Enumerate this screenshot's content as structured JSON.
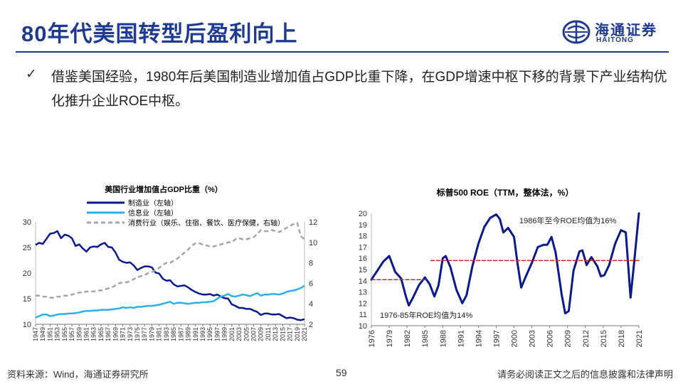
{
  "header": {
    "title": "80年代美国转型后盈利向上",
    "logo": {
      "cn": "海通证券",
      "en": "HAITONG",
      "icon": "haitong-logo-icon"
    }
  },
  "bullet": {
    "icon": "checkmark-icon",
    "text": "借鉴美国经验，1980年后美国制造业增加值占GDP比重下降，在GDP增速中枢下移的背景下产业结构优化推升企业ROE中枢。"
  },
  "footer": {
    "source": "资料来源：Wind，海通证券研究所",
    "page": "59",
    "disclaimer": "请务必阅读正文之后的信息披露和法律声明"
  },
  "colors": {
    "brand": "#1f3a93",
    "navy": "#0a1a8c",
    "cyan": "#2bb1e8",
    "gray": "#a5a5a5",
    "red": "#d62020"
  },
  "chart_data": [
    {
      "type": "line",
      "title": "美国行业增加值占GDP比重（%）",
      "x": [
        1947,
        1948,
        1949,
        1950,
        1951,
        1952,
        1953,
        1954,
        1955,
        1956,
        1957,
        1958,
        1959,
        1960,
        1961,
        1962,
        1963,
        1964,
        1965,
        1966,
        1967,
        1968,
        1969,
        1970,
        1971,
        1972,
        1973,
        1974,
        1975,
        1976,
        1977,
        1978,
        1979,
        1980,
        1981,
        1982,
        1983,
        1984,
        1985,
        1986,
        1987,
        1988,
        1989,
        1990,
        1991,
        1992,
        1993,
        1994,
        1995,
        1996,
        1997,
        1998,
        1999,
        2000,
        2001,
        2002,
        2003,
        2004,
        2005,
        2006,
        2007,
        2008,
        2009,
        2010,
        2011,
        2012,
        2013,
        2014,
        2015,
        2016,
        2017,
        2018,
        2019,
        2020,
        2021
      ],
      "x_tick_labels": [
        "1947",
        "1949",
        "1951",
        "1953",
        "1955",
        "1957",
        "1959",
        "1961",
        "1963",
        "1965",
        "1967",
        "1969",
        "1971",
        "1973",
        "1975",
        "1977",
        "1979",
        "1981",
        "1983",
        "1985",
        "1987",
        "1989",
        "1991",
        "1993",
        "1995",
        "1997",
        "1999",
        "2001",
        "2003",
        "2005",
        "2007",
        "2009",
        "2011",
        "2013",
        "2015",
        "2017",
        "2019",
        "2021"
      ],
      "y_left_ticks": [
        "10",
        "15",
        "20",
        "25",
        "30"
      ],
      "y_right_ticks": [
        "2",
        "4",
        "6",
        "8",
        "10",
        "12"
      ],
      "ylim_left": [
        10,
        30
      ],
      "ylim_right": [
        2,
        12
      ],
      "legend": [
        "制造业（左轴）",
        "信息业（左轴）",
        "消费行业（娱乐、住宿、餐饮、医疗保健，右轴）"
      ],
      "series": [
        {
          "name": "制造业（左轴）",
          "axis": "left",
          "color": "#0a1a8c",
          "style": "solid",
          "values": [
            25.5,
            25.9,
            25.7,
            26.7,
            27.7,
            27.8,
            28.2,
            26.8,
            27.5,
            27.3,
            26.8,
            25.3,
            25.6,
            24.8,
            24.2,
            25.0,
            25.2,
            25.1,
            25.6,
            25.9,
            25.1,
            25.0,
            24.0,
            22.6,
            22.2,
            22.0,
            22.1,
            21.5,
            20.6,
            21.0,
            21.3,
            21.3,
            21.1,
            20.1,
            19.9,
            18.9,
            18.5,
            18.6,
            17.8,
            17.4,
            17.5,
            17.6,
            17.2,
            16.7,
            16.3,
            16.0,
            15.8,
            15.8,
            15.9,
            15.6,
            15.8,
            15.4,
            15.1,
            15.0,
            13.9,
            13.6,
            13.2,
            13.2,
            13.0,
            13.0,
            12.7,
            12.4,
            11.8,
            12.1,
            12.1,
            11.9,
            11.9,
            12.0,
            11.6,
            11.2,
            11.3,
            11.2,
            10.9,
            10.8,
            11.0
          ]
        },
        {
          "name": "信息业（左轴）",
          "axis": "left",
          "color": "#2bb1e8",
          "style": "solid",
          "values": [
            11.3,
            11.6,
            11.9,
            11.9,
            11.6,
            11.7,
            11.9,
            12.0,
            12.0,
            12.1,
            12.1,
            12.2,
            12.3,
            12.5,
            12.6,
            12.6,
            12.7,
            12.7,
            12.8,
            12.8,
            12.8,
            12.9,
            13.0,
            13.1,
            13.3,
            13.2,
            13.3,
            13.2,
            13.4,
            13.4,
            13.5,
            13.6,
            13.6,
            13.7,
            13.8,
            14.0,
            14.2,
            14.4,
            14.0,
            14.2,
            14.2,
            14.1,
            14.0,
            14.1,
            14.2,
            14.2,
            14.3,
            14.3,
            14.4,
            14.5,
            15.0,
            15.4,
            15.6,
            15.9,
            15.5,
            15.4,
            15.6,
            15.8,
            15.7,
            15.5,
            15.8,
            16.1,
            15.6,
            15.8,
            15.8,
            15.9,
            15.9,
            15.8,
            16.0,
            16.3,
            16.5,
            16.6,
            16.8,
            17.1,
            17.5
          ]
        },
        {
          "name": "消费行业（娱乐、住宿、餐饮、医疗保健，右轴）",
          "axis": "right",
          "color": "#a5a5a5",
          "style": "dashed",
          "values": [
            4.8,
            4.8,
            4.7,
            4.7,
            4.6,
            4.6,
            4.7,
            4.7,
            4.8,
            4.8,
            4.9,
            5.0,
            5.1,
            5.1,
            5.2,
            5.2,
            5.2,
            5.3,
            5.3,
            5.4,
            5.5,
            5.6,
            5.8,
            6.0,
            6.1,
            6.1,
            6.2,
            6.4,
            6.6,
            6.7,
            6.8,
            7.0,
            7.1,
            7.3,
            7.5,
            7.8,
            8.0,
            8.0,
            8.2,
            8.4,
            8.7,
            9.0,
            9.3,
            9.7,
            9.9,
            9.9,
            9.8,
            9.7,
            9.6,
            9.6,
            9.7,
            9.8,
            9.9,
            10.0,
            10.0,
            10.3,
            10.4,
            10.3,
            10.3,
            10.4,
            10.5,
            10.8,
            11.2,
            11.1,
            11.1,
            11.2,
            11.1,
            11.0,
            11.2,
            11.4,
            11.6,
            11.8,
            11.9,
            10.6,
            10.3
          ]
        }
      ]
    },
    {
      "type": "line",
      "title": "标普500 ROE（TTM，整体法，%）",
      "x_tick_labels": [
        "1976",
        "1979",
        "1982",
        "1985",
        "1988",
        "1991",
        "1994",
        "1997",
        "2000",
        "2003",
        "2006",
        "2009",
        "2012",
        "2015",
        "2018",
        "2021"
      ],
      "y_ticks": [
        "10",
        "11",
        "12",
        "13",
        "14",
        "15",
        "16",
        "17",
        "18",
        "19",
        "20"
      ],
      "ylim": [
        10,
        20
      ],
      "series": [
        {
          "name": "标普500 ROE",
          "color": "#0a1a8c",
          "style": "solid",
          "points": [
            [
              1976,
              14.1
            ],
            [
              1977,
              14.9
            ],
            [
              1978,
              15.7
            ],
            [
              1979,
              16.2
            ],
            [
              1980,
              14.8
            ],
            [
              1981,
              14.2
            ],
            [
              1981.8,
              12.6
            ],
            [
              1982.3,
              11.8
            ],
            [
              1983,
              12.5
            ],
            [
              1984,
              13.6
            ],
            [
              1985,
              14.3
            ],
            [
              1985.8,
              13.7
            ],
            [
              1986.6,
              12.6
            ],
            [
              1987.3,
              13.6
            ],
            [
              1988,
              16.0
            ],
            [
              1988.5,
              16.2
            ],
            [
              1989.3,
              15.2
            ],
            [
              1990.3,
              13.2
            ],
            [
              1991.3,
              12.0
            ],
            [
              1992,
              12.7
            ],
            [
              1993,
              15.3
            ],
            [
              1994,
              17.3
            ],
            [
              1995,
              18.8
            ],
            [
              1996,
              19.6
            ],
            [
              1997,
              19.9
            ],
            [
              1997.6,
              19.5
            ],
            [
              1998.2,
              18.3
            ],
            [
              1999,
              18.7
            ],
            [
              2000,
              17.9
            ],
            [
              2000.6,
              15.5
            ],
            [
              2001.2,
              13.4
            ],
            [
              2002,
              14.4
            ],
            [
              2003,
              15.6
            ],
            [
              2004,
              17.0
            ],
            [
              2005,
              17.2
            ],
            [
              2005.6,
              17.2
            ],
            [
              2006.3,
              17.9
            ],
            [
              2007,
              16.5
            ],
            [
              2008,
              12.8
            ],
            [
              2008.6,
              11.1
            ],
            [
              2009.2,
              11.3
            ],
            [
              2010,
              14.9
            ],
            [
              2011,
              16.6
            ],
            [
              2011.5,
              16.7
            ],
            [
              2012.2,
              15.4
            ],
            [
              2013,
              16.1
            ],
            [
              2014,
              15.3
            ],
            [
              2014.6,
              14.4
            ],
            [
              2015.2,
              14.5
            ],
            [
              2016,
              15.4
            ],
            [
              2017,
              17.3
            ],
            [
              2018,
              18.5
            ],
            [
              2018.8,
              18.3
            ],
            [
              2019.6,
              12.5
            ],
            [
              2020.2,
              15.6
            ],
            [
              2021,
              20.0
            ]
          ]
        },
        {
          "name": "1976-85年ROE均值为14%",
          "color": "#d62020",
          "style": "dashed",
          "points": [
            [
              1976,
              14.1
            ],
            [
              1985.5,
              14.1
            ]
          ]
        },
        {
          "name": "1986年至今ROE均值为16%",
          "color": "#d62020",
          "style": "dashed",
          "points": [
            [
              1986,
              15.8
            ],
            [
              2021,
              15.8
            ]
          ]
        }
      ],
      "annotations": [
        "1986年至今ROE均值为16%",
        "1976-85年ROE均值为14%"
      ]
    }
  ]
}
